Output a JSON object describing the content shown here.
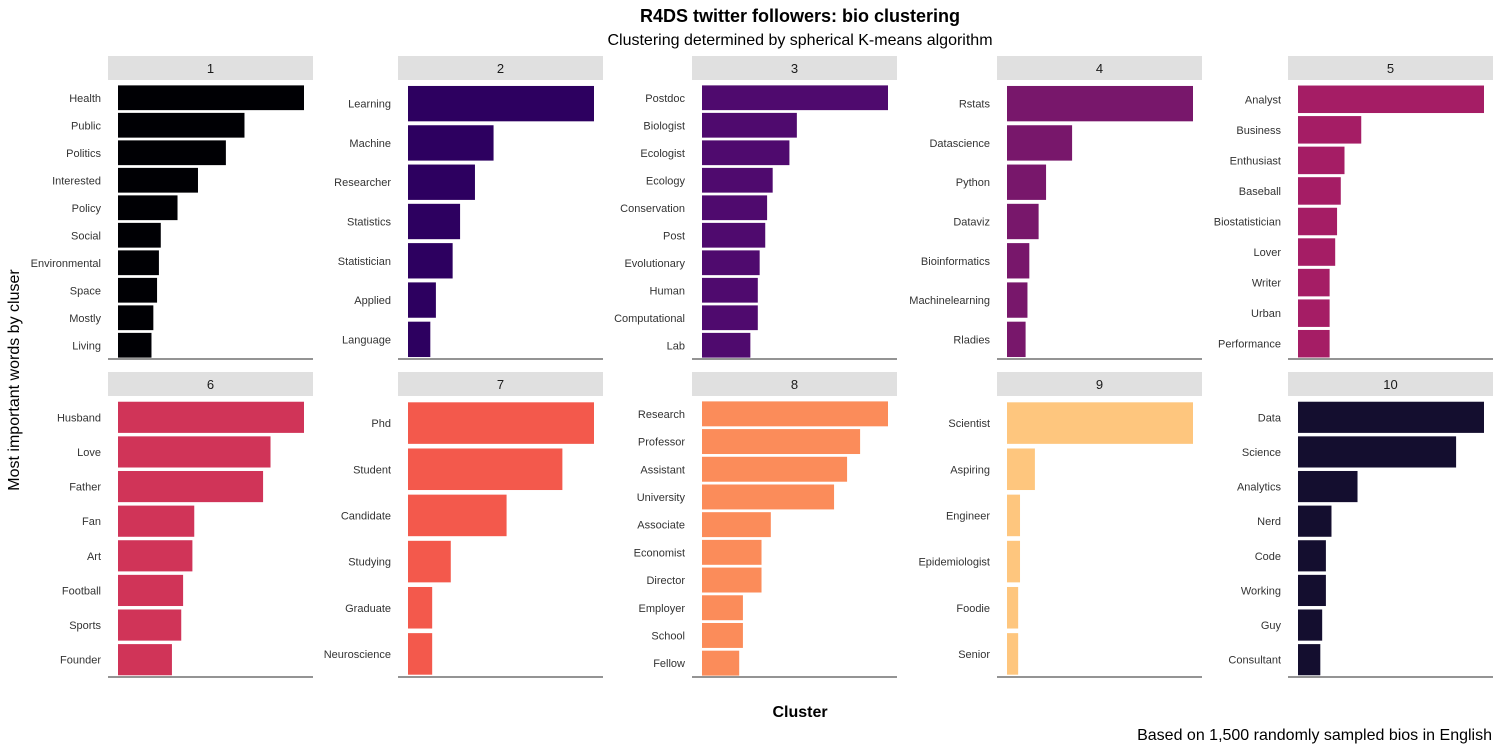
{
  "chart_data": {
    "type": "bar",
    "orientation": "horizontal",
    "title": "R4DS twitter followers: bio clustering",
    "subtitle": "Clustering determined by spherical K-means algorithm",
    "xlabel": "Cluster",
    "ylabel": "Most important words by cluser",
    "caption": "Based on 1,500 randomly sampled bios in English",
    "grid": false,
    "facets": [
      {
        "label": "1",
        "color": "#000004",
        "categories": [
          "Health",
          "Public",
          "Politics",
          "Interested",
          "Policy",
          "Social",
          "Environmental",
          "Space",
          "Mostly",
          "Living"
        ],
        "values": [
          1.0,
          0.68,
          0.58,
          0.43,
          0.32,
          0.23,
          0.22,
          0.21,
          0.19,
          0.18
        ]
      },
      {
        "label": "2",
        "color": "#2D0060",
        "categories": [
          "Learning",
          "Machine",
          "Researcher",
          "Statistics",
          "Statistician",
          "Applied",
          "Language"
        ],
        "values": [
          1.0,
          0.46,
          0.36,
          0.28,
          0.24,
          0.15,
          0.12
        ]
      },
      {
        "label": "3",
        "color": "#4F0A6E",
        "categories": [
          "Postdoc",
          "Biologist",
          "Ecologist",
          "Ecology",
          "Conservation",
          "Post",
          "Evolutionary",
          "Human",
          "Computational",
          "Lab"
        ],
        "values": [
          1.0,
          0.51,
          0.47,
          0.38,
          0.35,
          0.34,
          0.31,
          0.3,
          0.3,
          0.26
        ]
      },
      {
        "label": "4",
        "color": "#78176B",
        "categories": [
          "Rstats",
          "Datascience",
          "Python",
          "Dataviz",
          "Bioinformatics",
          "Machinelearning",
          "Rladies"
        ],
        "values": [
          1.0,
          0.35,
          0.21,
          0.17,
          0.12,
          0.11,
          0.1
        ]
      },
      {
        "label": "5",
        "color": "#A51D65",
        "categories": [
          "Analyst",
          "Business",
          "Enthusiast",
          "Baseball",
          "Biostatistician",
          "Lover",
          "Writer",
          "Urban",
          "Performance"
        ],
        "values": [
          1.0,
          0.34,
          0.25,
          0.23,
          0.21,
          0.2,
          0.17,
          0.17,
          0.17
        ]
      },
      {
        "label": "6",
        "color": "#D03458",
        "categories": [
          "Husband",
          "Love",
          "Father",
          "Fan",
          "Art",
          "Football",
          "Sports",
          "Founder"
        ],
        "values": [
          1.0,
          0.82,
          0.78,
          0.41,
          0.4,
          0.35,
          0.34,
          0.29
        ]
      },
      {
        "label": "7",
        "color": "#F3594C",
        "categories": [
          "Phd",
          "Student",
          "Candidate",
          "Studying",
          "Graduate",
          "Neuroscience"
        ],
        "values": [
          1.0,
          0.83,
          0.53,
          0.23,
          0.13,
          0.13
        ]
      },
      {
        "label": "8",
        "color": "#FB8C5A",
        "categories": [
          "Research",
          "Professor",
          "Assistant",
          "University",
          "Associate",
          "Economist",
          "Director",
          "Employer",
          "School",
          "Fellow"
        ],
        "values": [
          1.0,
          0.85,
          0.78,
          0.71,
          0.37,
          0.32,
          0.32,
          0.22,
          0.22,
          0.2
        ]
      },
      {
        "label": "9",
        "color": "#FEC67E",
        "categories": [
          "Scientist",
          "Aspiring",
          "Engineer",
          "Epidemiologist",
          "Foodie",
          "Senior"
        ],
        "values": [
          1.0,
          0.15,
          0.07,
          0.07,
          0.06,
          0.06
        ]
      },
      {
        "label": "10",
        "color": "#140E2F",
        "categories": [
          "Data",
          "Science",
          "Analytics",
          "Nerd",
          "Code",
          "Working",
          "Guy",
          "Consultant"
        ],
        "values": [
          1.0,
          0.85,
          0.32,
          0.18,
          0.15,
          0.15,
          0.13,
          0.12
        ]
      }
    ]
  }
}
